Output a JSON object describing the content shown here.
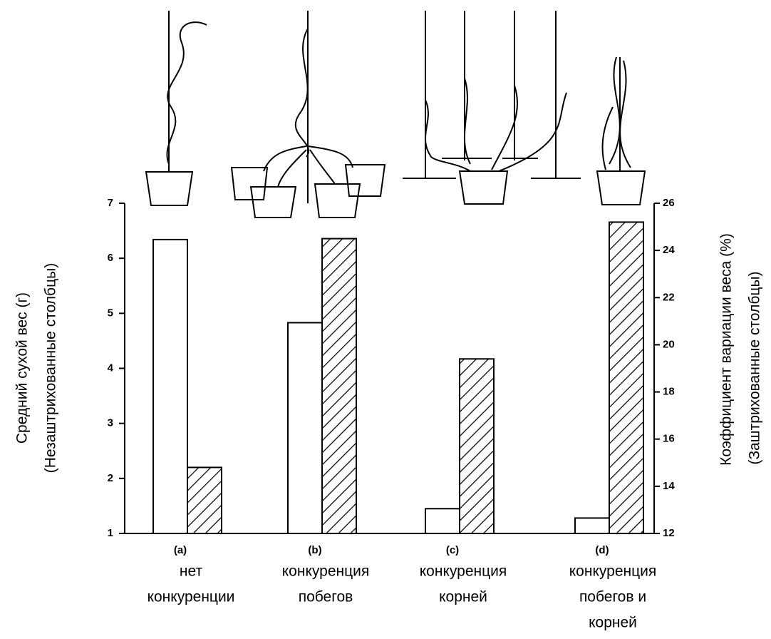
{
  "chart_data": {
    "type": "bar",
    "categories": [
      "(a)",
      "(b)",
      "(c)",
      "(d)"
    ],
    "category_descriptions": [
      [
        "нет",
        "конкуренции"
      ],
      [
        "конкуренция",
        "побегов"
      ],
      [
        "конкуренция",
        "корней"
      ],
      [
        "конкуренция",
        "побегов и",
        "корней"
      ]
    ],
    "y_label": [
      "Средний сухой вес (г)",
      "(Незаштрихованные столбцы)"
    ],
    "y2_label": [
      "Коэффициент вариации веса (%)",
      "(Заштрихованные столбцы)"
    ],
    "ylim": [
      1,
      7
    ],
    "yticks": [
      1,
      2,
      3,
      4,
      5,
      6,
      7
    ],
    "y2lim": [
      12,
      26
    ],
    "y2ticks": [
      12,
      14,
      16,
      18,
      20,
      22,
      24,
      26
    ],
    "series": [
      {
        "values": [
          6.34,
          4.83,
          1.45,
          1.28
        ],
        "color": "#ffffff",
        "axis": "y",
        "hatched": false
      },
      {
        "values": [
          14.8,
          24.5,
          19.4,
          25.2
        ],
        "color": "#ffffff",
        "axis": "y2",
        "hatched": true
      }
    ]
  }
}
